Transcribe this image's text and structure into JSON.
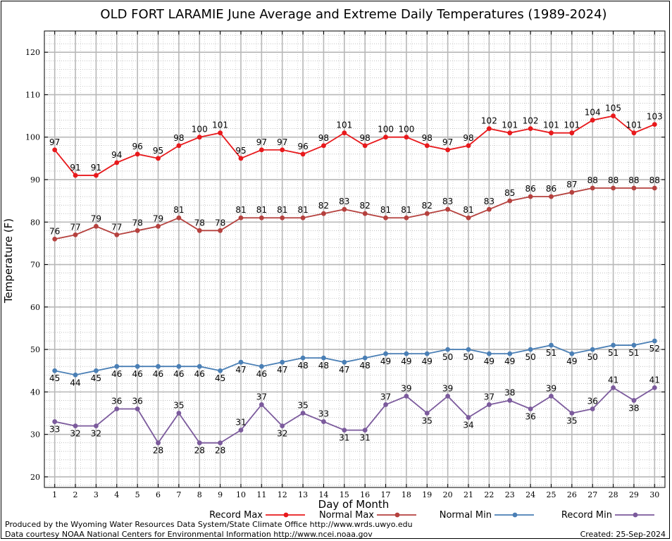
{
  "chart_data": {
    "type": "line",
    "title": "OLD FORT LARAMIE June Average and Extreme Daily Temperatures (1989-2024)",
    "xlabel": "Day of Month",
    "ylabel": "Temperature (F)",
    "x": [
      1,
      2,
      3,
      4,
      5,
      6,
      7,
      8,
      9,
      10,
      11,
      12,
      13,
      14,
      15,
      16,
      17,
      18,
      19,
      20,
      21,
      22,
      23,
      24,
      25,
      26,
      27,
      28,
      29,
      30
    ],
    "xlim": [
      0.5,
      30.5
    ],
    "ylim": [
      17.5,
      125
    ],
    "yticks": [
      20,
      30,
      40,
      50,
      60,
      70,
      80,
      90,
      100,
      110,
      120
    ],
    "grid": true,
    "legend_position": "bottom",
    "series": [
      {
        "name": "Record Max",
        "color": "#e8191c",
        "values": [
          97,
          91,
          91,
          94,
          96,
          95,
          98,
          100,
          101,
          95,
          97,
          97,
          96,
          98,
          101,
          98,
          100,
          100,
          98,
          97,
          98,
          102,
          101,
          102,
          101,
          101,
          104,
          105,
          101,
          103
        ]
      },
      {
        "name": "Normal Max",
        "color": "#b5413e",
        "values": [
          76,
          77,
          79,
          77,
          78,
          79,
          81,
          78,
          78,
          81,
          81,
          81,
          81,
          82,
          83,
          82,
          81,
          81,
          82,
          83,
          81,
          83,
          85,
          86,
          86,
          87,
          88,
          88,
          88,
          88
        ]
      },
      {
        "name": "Normal Min",
        "color": "#4a7fb5",
        "values": [
          45,
          44,
          45,
          46,
          46,
          46,
          46,
          46,
          45,
          47,
          46,
          47,
          48,
          48,
          47,
          48,
          49,
          49,
          49,
          50,
          50,
          49,
          49,
          50,
          51,
          49,
          50,
          51,
          51,
          52
        ]
      },
      {
        "name": "Record Min",
        "color": "#7b5a9c",
        "values": [
          33,
          32,
          32,
          36,
          36,
          28,
          35,
          28,
          28,
          31,
          37,
          32,
          35,
          33,
          31,
          31,
          37,
          39,
          35,
          39,
          34,
          37,
          38,
          36,
          39,
          35,
          36,
          41,
          38,
          41
        ]
      }
    ]
  },
  "footer": {
    "credit1": "Produced by the Wyoming Water Resources Data System/State Climate Office http://www.wrds.uwyo.edu",
    "credit2": "Data courtesy NOAA National Centers for Environmental Information http://www.ncei.noaa.gov",
    "created": "Created:  25-Sep-2024"
  }
}
